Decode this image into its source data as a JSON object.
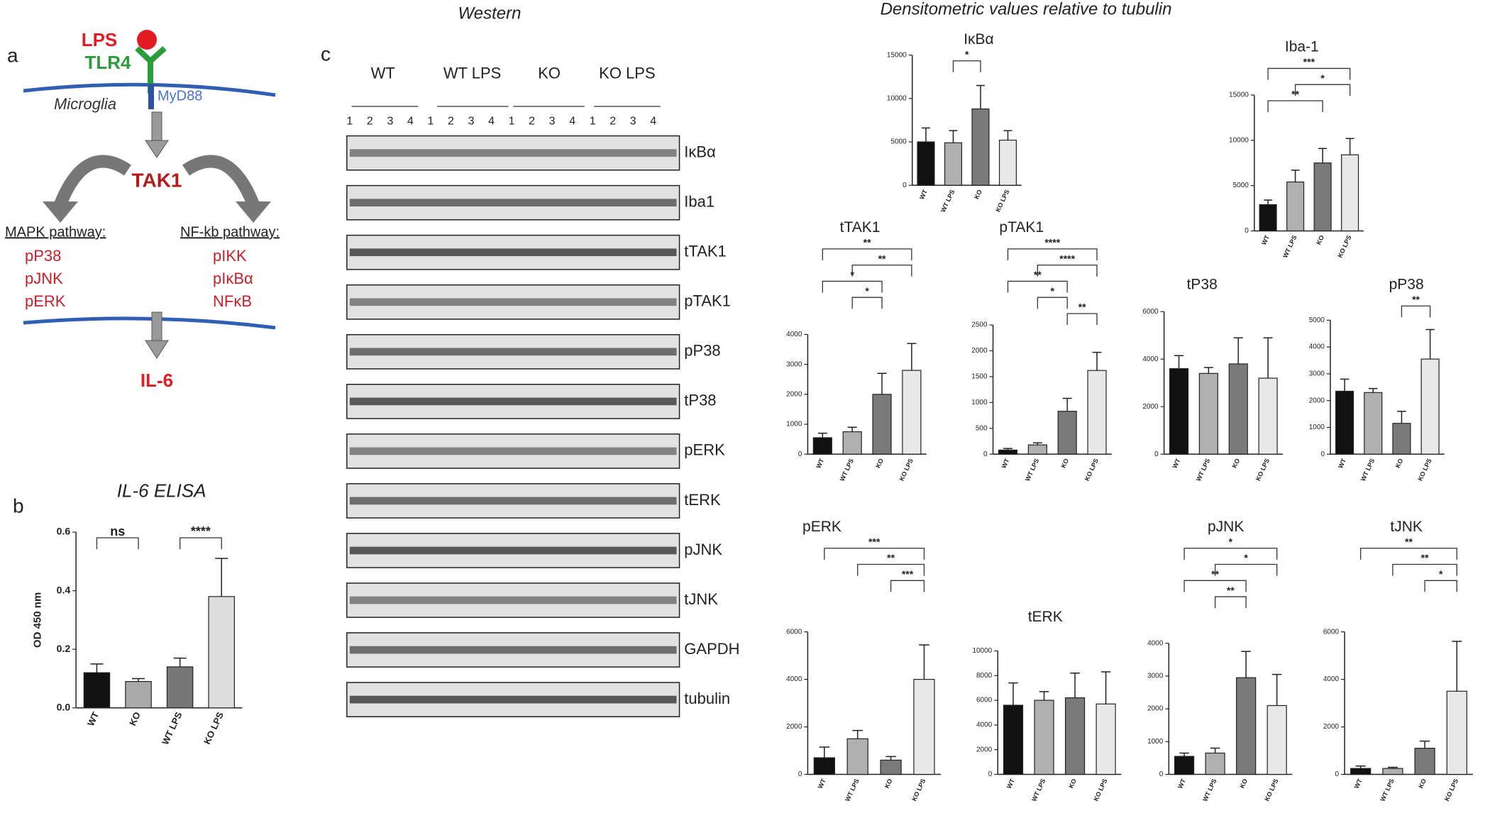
{
  "panel_a": {
    "label": "a",
    "lps": "LPS",
    "tlr4": "TLR4",
    "cell": "Microglia",
    "adaptor": "MyD88",
    "kinase": "TAK1",
    "mapk": {
      "title": "MAPK pathway:",
      "items": [
        "pP38",
        "pJNK",
        "pERK"
      ]
    },
    "nfkb": {
      "title": "NF-kb pathway:",
      "items": [
        "pIKK",
        "pIκBα",
        "NFκB"
      ]
    },
    "output": "IL-6"
  },
  "panel_b": {
    "label": "b"
  },
  "panel_c": {
    "label": "c",
    "western_title": "Western",
    "densitometry_title": "Densitometric values relative to tubulin",
    "groups": [
      "WT",
      "WT LPS",
      "KO",
      "KO LPS"
    ],
    "lanes": [
      "1",
      "2",
      "3",
      "4"
    ],
    "blots": [
      "IκBα",
      "Iba1",
      "tTAK1",
      "pTAK1",
      "pP38",
      "tP38",
      "pERK",
      "tERK",
      "pJNK",
      "tJNK",
      "GAPDH",
      "tubulin"
    ]
  },
  "chart_data": [
    {
      "type": "bar",
      "title": "IL-6 ELISA",
      "ylabel": "OD 450 nm",
      "categories": [
        "WT",
        "KO",
        "WT LPS",
        "KO LPS"
      ],
      "colors": [
        "#111111",
        "#aaaaaa",
        "#777777",
        "#dddddd"
      ],
      "values": [
        0.12,
        0.09,
        0.14,
        0.38
      ],
      "errors": [
        0.03,
        0.01,
        0.03,
        0.13
      ],
      "ylim": [
        0,
        0.6
      ],
      "yticks": [
        {
          "value": 0,
          "label": "0.0"
        },
        0.2,
        0.4,
        0.6
      ],
      "annotations": [
        {
          "text": "ns",
          "between": [
            "WT",
            "KO"
          ]
        },
        {
          "text": "****",
          "between": [
            "WT LPS",
            "KO LPS"
          ]
        }
      ]
    },
    {
      "type": "bar",
      "title": "IκBα",
      "categories": [
        "WT",
        "WT LPS",
        "KO",
        "KO LPS"
      ],
      "colors": [
        "#111111",
        "#b0b0b0",
        "#7a7a7a",
        "#e8e8e8"
      ],
      "values": [
        5000,
        4900,
        8800,
        5200
      ],
      "errors": [
        1600,
        1400,
        2700,
        1100
      ],
      "ylim": [
        0,
        15000
      ],
      "yticks": [
        0,
        5000,
        10000,
        15000
      ],
      "annotations": [
        {
          "text": "*",
          "between": [
            "WT LPS",
            "KO"
          ]
        }
      ]
    },
    {
      "type": "bar",
      "title": "Iba-1",
      "categories": [
        "WT",
        "WT LPS",
        "KO",
        "KO LPS"
      ],
      "colors": [
        "#111111",
        "#b0b0b0",
        "#7a7a7a",
        "#e8e8e8"
      ],
      "values": [
        2900,
        5400,
        7500,
        8400
      ],
      "errors": [
        500,
        1300,
        1600,
        1800
      ],
      "ylim": [
        0,
        15000
      ],
      "yticks": [
        0,
        5000,
        10000,
        15000
      ],
      "annotations": [
        {
          "text": "***",
          "between": [
            "WT",
            "KO LPS"
          ]
        },
        {
          "text": "*",
          "between": [
            "WT LPS",
            "KO LPS"
          ]
        },
        {
          "text": "**",
          "between": [
            "WT",
            "KO"
          ]
        }
      ]
    },
    {
      "type": "bar",
      "title": "tTAK1",
      "categories": [
        "WT",
        "WT LPS",
        "KO",
        "KO LPS"
      ],
      "colors": [
        "#111111",
        "#b0b0b0",
        "#7a7a7a",
        "#e8e8e8"
      ],
      "values": [
        550,
        750,
        2000,
        2800
      ],
      "errors": [
        150,
        150,
        700,
        900
      ],
      "ylim": [
        0,
        4000
      ],
      "yticks": [
        0,
        1000,
        2000,
        3000,
        4000
      ],
      "annotations": [
        {
          "text": "**",
          "between": [
            "WT",
            "KO LPS"
          ]
        },
        {
          "text": "**",
          "between": [
            "WT LPS",
            "KO LPS"
          ]
        },
        {
          "text": "*",
          "between": [
            "WT",
            "KO"
          ]
        },
        {
          "text": "*",
          "between": [
            "WT LPS",
            "KO"
          ]
        }
      ]
    },
    {
      "type": "bar",
      "title": "pTAK1",
      "categories": [
        "WT",
        "WT LPS",
        "KO",
        "KO LPS"
      ],
      "colors": [
        "#111111",
        "#b0b0b0",
        "#7a7a7a",
        "#e8e8e8"
      ],
      "values": [
        80,
        180,
        830,
        1620
      ],
      "errors": [
        30,
        40,
        250,
        350
      ],
      "ylim": [
        0,
        2500
      ],
      "yticks": [
        0,
        500,
        1000,
        1500,
        2000,
        2500
      ],
      "annotations": [
        {
          "text": "****",
          "between": [
            "WT",
            "KO LPS"
          ]
        },
        {
          "text": "****",
          "between": [
            "WT LPS",
            "KO LPS"
          ]
        },
        {
          "text": "**",
          "between": [
            "WT",
            "KO"
          ]
        },
        {
          "text": "*",
          "between": [
            "WT LPS",
            "KO"
          ]
        },
        {
          "text": "**",
          "between": [
            "KO",
            "KO LPS"
          ]
        }
      ]
    },
    {
      "type": "bar",
      "title": "tP38",
      "categories": [
        "WT",
        "WT LPS",
        "KO",
        "KO LPS"
      ],
      "colors": [
        "#111111",
        "#b0b0b0",
        "#7a7a7a",
        "#e8e8e8"
      ],
      "values": [
        3600,
        3400,
        3800,
        3200
      ],
      "errors": [
        550,
        250,
        1100,
        1700
      ],
      "ylim": [
        0,
        6000
      ],
      "yticks": [
        0,
        2000,
        4000,
        6000
      ],
      "annotations": []
    },
    {
      "type": "bar",
      "title": "pP38",
      "categories": [
        "WT",
        "WT LPS",
        "KO",
        "KO LPS"
      ],
      "colors": [
        "#111111",
        "#b0b0b0",
        "#7a7a7a",
        "#e8e8e8"
      ],
      "values": [
        2350,
        2300,
        1150,
        3550
      ],
      "errors": [
        450,
        150,
        450,
        1100
      ],
      "ylim": [
        0,
        5000
      ],
      "yticks": [
        0,
        1000,
        2000,
        3000,
        4000,
        5000
      ],
      "annotations": [
        {
          "text": "**",
          "between": [
            "KO",
            "KO LPS"
          ]
        }
      ]
    },
    {
      "type": "bar",
      "title": "pERK",
      "categories": [
        "WT",
        "WT LPS",
        "KO",
        "KO LPS"
      ],
      "colors": [
        "#111111",
        "#b0b0b0",
        "#7a7a7a",
        "#e8e8e8"
      ],
      "values": [
        700,
        1500,
        600,
        4000
      ],
      "errors": [
        450,
        350,
        150,
        1450
      ],
      "ylim": [
        0,
        6000
      ],
      "yticks": [
        0,
        2000,
        4000,
        6000
      ],
      "annotations": [
        {
          "text": "***",
          "between": [
            "WT",
            "KO LPS"
          ]
        },
        {
          "text": "**",
          "between": [
            "WT LPS",
            "KO LPS"
          ]
        },
        {
          "text": "***",
          "between": [
            "KO",
            "KO LPS"
          ]
        }
      ]
    },
    {
      "type": "bar",
      "title": "tERK",
      "categories": [
        "WT",
        "WT LPS",
        "KO",
        "KO LPS"
      ],
      "colors": [
        "#111111",
        "#b0b0b0",
        "#7a7a7a",
        "#e8e8e8"
      ],
      "values": [
        5600,
        6000,
        6200,
        5700
      ],
      "errors": [
        1800,
        700,
        2000,
        2600
      ],
      "ylim": [
        0,
        10000
      ],
      "yticks": [
        0,
        2000,
        4000,
        6000,
        8000,
        10000
      ],
      "annotations": []
    },
    {
      "type": "bar",
      "title": "pJNK",
      "categories": [
        "WT",
        "WT LPS",
        "KO",
        "KO LPS"
      ],
      "colors": [
        "#111111",
        "#b0b0b0",
        "#7a7a7a",
        "#e8e8e8"
      ],
      "values": [
        550,
        650,
        2950,
        2100
      ],
      "errors": [
        100,
        150,
        800,
        950
      ],
      "ylim": [
        0,
        4000
      ],
      "yticks": [
        0,
        1000,
        2000,
        3000,
        4000
      ],
      "annotations": [
        {
          "text": "*",
          "between": [
            "WT",
            "KO LPS"
          ]
        },
        {
          "text": "*",
          "between": [
            "WT LPS",
            "KO LPS"
          ]
        },
        {
          "text": "**",
          "between": [
            "WT",
            "KO"
          ]
        },
        {
          "text": "**",
          "between": [
            "WT LPS",
            "KO"
          ]
        }
      ]
    },
    {
      "type": "bar",
      "title": "tJNK",
      "categories": [
        "WT",
        "WT LPS",
        "KO",
        "KO LPS"
      ],
      "colors": [
        "#111111",
        "#b0b0b0",
        "#7a7a7a",
        "#e8e8e8"
      ],
      "values": [
        250,
        250,
        1100,
        3500
      ],
      "errors": [
        100,
        50,
        300,
        2100
      ],
      "ylim": [
        0,
        6000
      ],
      "yticks": [
        0,
        2000,
        4000,
        6000
      ],
      "annotations": [
        {
          "text": "**",
          "between": [
            "WT",
            "KO LPS"
          ]
        },
        {
          "text": "**",
          "between": [
            "WT LPS",
            "KO LPS"
          ]
        },
        {
          "text": "*",
          "between": [
            "KO",
            "KO LPS"
          ]
        }
      ]
    }
  ]
}
